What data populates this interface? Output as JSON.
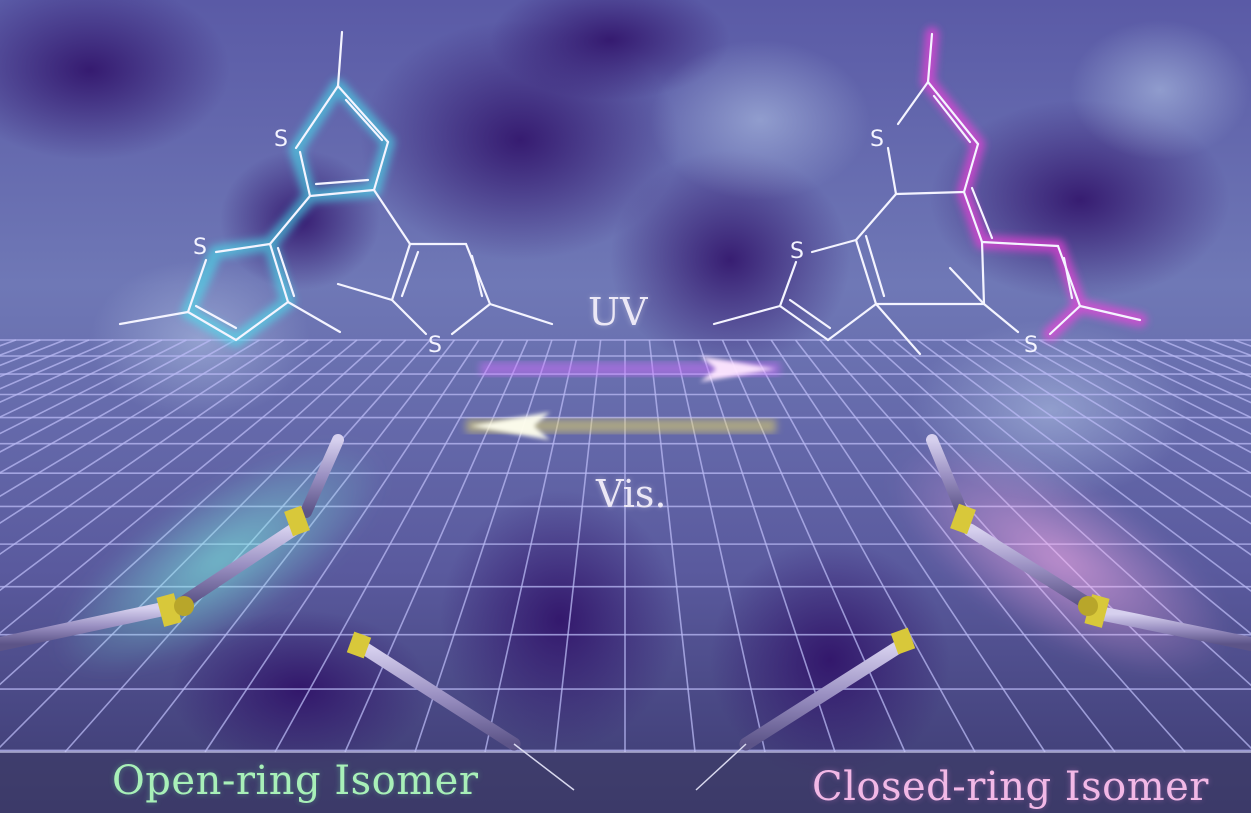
{
  "molecules": {
    "open_ring": {
      "glow_color": "#46e6f0",
      "atoms": [
        "S",
        "S",
        "S"
      ]
    },
    "closed_ring": {
      "glow_color": "#ff3ce0",
      "atoms": [
        "S",
        "S",
        "S"
      ]
    }
  },
  "arrows": {
    "forward": {
      "label": "UV",
      "color": "#e59bff"
    },
    "backward": {
      "label": "Vis.",
      "color": "#f6f07a"
    }
  },
  "captions": {
    "open": "Open-ring Isomer",
    "closed": "Closed-ring Isomer"
  },
  "colors": {
    "background_dark": "#3a1a6e",
    "background_light": "#7a86c0",
    "grid": "#b7b7f2",
    "open_accent": "#a8f0b8",
    "closed_accent": "#f2b8e6",
    "rod": "#8e84b4",
    "joint": "#d8c83a"
  }
}
